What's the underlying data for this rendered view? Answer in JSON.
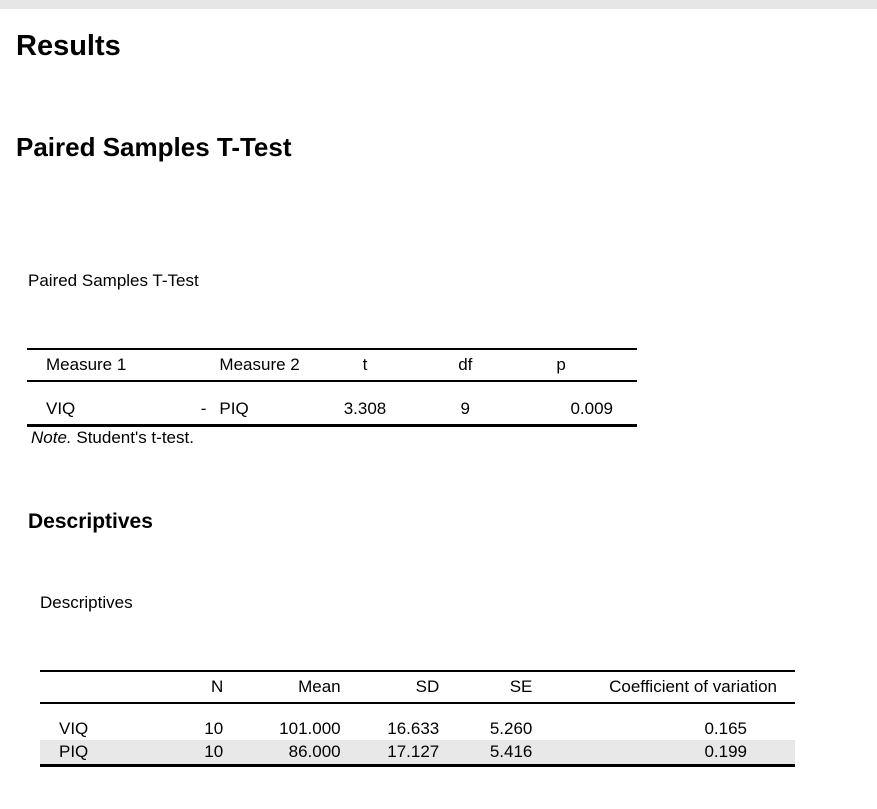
{
  "headings": {
    "results": "Results",
    "ttest": "Paired Samples T-Test",
    "descriptives": "Descriptives"
  },
  "ttest_table": {
    "caption": "Paired Samples T-Test",
    "columns": [
      "Measure 1",
      "",
      "Measure 2",
      "t",
      "df",
      "p"
    ],
    "row": {
      "measure1": "VIQ",
      "sep": "-",
      "measure2": "PIQ",
      "t": "3.308",
      "df": "9",
      "p": "0.009"
    },
    "note_label": "Note.",
    "note_text": " Student's t-test."
  },
  "desc_table": {
    "caption": "Descriptives",
    "columns": [
      "",
      "N",
      "Mean",
      "SD",
      "SE",
      "Coefficient of variation"
    ],
    "rows": [
      {
        "name": "VIQ",
        "n": "10",
        "mean": "101.000",
        "sd": "16.633",
        "se": "5.260",
        "cv": "0.165"
      },
      {
        "name": "PIQ",
        "n": "10",
        "mean": "86.000",
        "sd": "17.127",
        "se": "5.416",
        "cv": "0.199"
      }
    ]
  }
}
